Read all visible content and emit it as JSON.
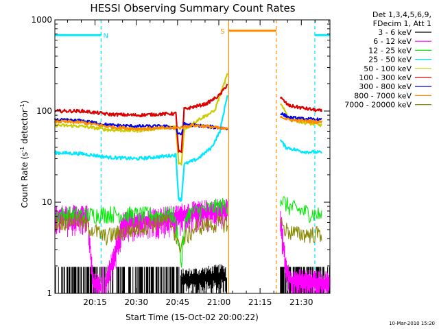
{
  "chart_data": {
    "type": "line",
    "title": "HESSI Observing Summary Count Rates",
    "xlabel": "Start Time (15-Oct-02 20:00:22)",
    "ylabel_main": "Count Rate (s",
    "ylabel_sup1": "-1",
    "ylabel_mid": " detector",
    "ylabel_sup2": "-1",
    "ylabel_end": ")",
    "x_unit": "minutes after 20:00:22",
    "xlim": [
      0,
      100
    ],
    "ylim": [
      1,
      1000
    ],
    "yscale": "log",
    "x_ticks": [
      {
        "value": 14.6,
        "label": "20:15"
      },
      {
        "value": 29.6,
        "label": "20:30"
      },
      {
        "value": 44.6,
        "label": "20:45"
      },
      {
        "value": 59.6,
        "label": "21:00"
      },
      {
        "value": 74.6,
        "label": "21:15"
      },
      {
        "value": 89.6,
        "label": "21:30"
      }
    ],
    "y_ticks": [
      {
        "value": 1,
        "label": "1"
      },
      {
        "value": 10,
        "label": "10"
      },
      {
        "value": 100,
        "label": "100"
      },
      {
        "value": 1000,
        "label": "1000"
      }
    ],
    "legend_header": [
      "Det 1,3,4,5,6,9,",
      "FDecim 1, Att 1"
    ],
    "legend_placement": "right",
    "timestamp": "10-Mar-2010 15:20",
    "flags": [
      {
        "label": "N",
        "color": "#00e8ff",
        "level": 680,
        "segments": [
          [
            0,
            16.8
          ],
          [
            94.5,
            100
          ]
        ],
        "text_x": 18.5
      },
      {
        "label": "S",
        "color": "#ff8c00",
        "level": 760,
        "segments": [
          [
            63.2,
            80.5
          ]
        ],
        "text_x": 61.0
      }
    ],
    "vlines": [
      {
        "x": 16.8,
        "color": "#00e8ff",
        "dashed": true
      },
      {
        "x": 94.5,
        "color": "#00e8ff",
        "dashed": true
      },
      {
        "x": 63.2,
        "color": "#ff8c00",
        "dashed": false
      },
      {
        "x": 80.5,
        "color": "#ff8c00",
        "dashed": true
      }
    ],
    "series": [
      {
        "name": "3 - 6 keV",
        "color": "#000000",
        "mode": "spiky",
        "segments": [
          [
            [
              0,
              1
            ],
            [
              45,
              1
            ],
            [
              46,
              1.5
            ],
            [
              55,
              1.6
            ],
            [
              62,
              1.7
            ],
            [
              62.9,
              1
            ]
          ],
          [
            [
              82,
              1
            ],
            [
              100,
              1
            ]
          ]
        ]
      },
      {
        "name": "6 - 12 keV",
        "color": "#ff00ff",
        "mode": "spiky",
        "segments": [
          [
            [
              0,
              7.5
            ],
            [
              12,
              7.5
            ],
            [
              13,
              3
            ],
            [
              14,
              1.4
            ],
            [
              18,
              1.2
            ],
            [
              25,
              6.5
            ],
            [
              35,
              7
            ],
            [
              44,
              7.4
            ],
            [
              47,
              8
            ],
            [
              55,
              8.5
            ],
            [
              62.9,
              9
            ]
          ],
          [
            [
              82,
              7.5
            ],
            [
              84,
              2
            ],
            [
              86,
              1.5
            ],
            [
              100,
              1.4
            ]
          ]
        ]
      },
      {
        "name": "12 - 25 keV",
        "color": "#00ee00",
        "mode": "noisy",
        "segments": [
          [
            [
              0,
              7.4
            ],
            [
              12,
              7.3
            ],
            [
              20,
              7.5
            ],
            [
              30,
              7.3
            ],
            [
              43,
              7.4
            ],
            [
              45,
              4
            ],
            [
              46,
              2
            ],
            [
              46.5,
              3.5
            ],
            [
              48,
              7.5
            ],
            [
              55,
              8.5
            ],
            [
              62.9,
              9.5
            ]
          ],
          [
            [
              82,
              11
            ],
            [
              85,
              9
            ],
            [
              90,
              8
            ],
            [
              97,
              7.2
            ]
          ]
        ]
      },
      {
        "name": "25 - 50 keV",
        "color": "#00e8ff",
        "mode": "smooth",
        "segments": [
          [
            [
              0,
              35
            ],
            [
              10,
              34
            ],
            [
              20,
              31
            ],
            [
              30,
              30
            ],
            [
              40,
              32
            ],
            [
              44,
              33
            ],
            [
              45,
              11
            ],
            [
              46,
              10.5
            ],
            [
              47,
              26
            ],
            [
              52,
              30
            ],
            [
              57,
              40
            ],
            [
              60,
              60
            ],
            [
              62.9,
              160
            ]
          ],
          [
            [
              82,
              48
            ],
            [
              84,
              40
            ],
            [
              90,
              36
            ],
            [
              97,
              35
            ]
          ]
        ]
      },
      {
        "name": "50 - 100 keV",
        "color": "#cccc00",
        "mode": "smooth",
        "segments": [
          [
            [
              0,
              70
            ],
            [
              10,
              68
            ],
            [
              20,
              62
            ],
            [
              30,
              61
            ],
            [
              40,
              66
            ],
            [
              44,
              67
            ],
            [
              45,
              27
            ],
            [
              46,
              26
            ],
            [
              47,
              62
            ],
            [
              52,
              80
            ],
            [
              58,
              100
            ],
            [
              62.9,
              260
            ]
          ],
          [
            [
              82,
              120
            ],
            [
              85,
              85
            ],
            [
              90,
              75
            ],
            [
              97,
              70
            ]
          ]
        ]
      },
      {
        "name": "100 - 300 keV",
        "color": "#dd0000",
        "mode": "smooth",
        "segments": [
          [
            [
              0,
              100
            ],
            [
              10,
              100
            ],
            [
              20,
              92
            ],
            [
              30,
              90
            ],
            [
              40,
              93
            ],
            [
              44,
              94
            ],
            [
              45,
              36
            ],
            [
              46,
              35
            ],
            [
              47,
              105
            ],
            [
              55,
              120
            ],
            [
              60,
              150
            ],
            [
              62.9,
              200
            ]
          ],
          [
            [
              82,
              140
            ],
            [
              85,
              115
            ],
            [
              90,
              108
            ],
            [
              97,
              100
            ]
          ]
        ]
      },
      {
        "name": "300 - 800 keV",
        "color": "#0000ee",
        "mode": "smooth",
        "segments": [
          [
            [
              0,
              80
            ],
            [
              10,
              78
            ],
            [
              20,
              70
            ],
            [
              30,
              68
            ],
            [
              40,
              68
            ],
            [
              44,
              65
            ],
            [
              45,
              55
            ],
            [
              46,
              56
            ],
            [
              47,
              72
            ],
            [
              55,
              68
            ],
            [
              62.9,
              64
            ]
          ],
          [
            [
              82,
              95
            ],
            [
              85,
              85
            ],
            [
              90,
              82
            ],
            [
              97,
              80
            ]
          ]
        ]
      },
      {
        "name": "800 - 7000 keV",
        "color": "#ff8c00",
        "mode": "smooth",
        "segments": [
          [
            [
              0,
              77
            ],
            [
              10,
              75
            ],
            [
              20,
              67
            ],
            [
              30,
              64
            ],
            [
              40,
              65
            ],
            [
              44,
              65
            ],
            [
              46,
              66
            ],
            [
              50,
              70
            ],
            [
              55,
              68
            ],
            [
              62.9,
              63
            ]
          ],
          [
            [
              82,
              88
            ],
            [
              85,
              80
            ],
            [
              90,
              78
            ],
            [
              97,
              76
            ]
          ]
        ]
      },
      {
        "name": "7000 - 20000 keV",
        "color": "#888800",
        "mode": "noisy",
        "segments": [
          [
            [
              0,
              6
            ],
            [
              8,
              6.5
            ],
            [
              12,
              5.5
            ],
            [
              18,
              4.2
            ],
            [
              30,
              5.2
            ],
            [
              40,
              6.5
            ],
            [
              43,
              5.5
            ],
            [
              45,
              3.2
            ],
            [
              47,
              4
            ],
            [
              52,
              5.5
            ],
            [
              58,
              5.8
            ],
            [
              62.9,
              6
            ]
          ],
          [
            [
              82,
              6
            ],
            [
              84,
              5
            ],
            [
              88,
              4.5
            ],
            [
              97,
              4.5
            ]
          ]
        ]
      }
    ]
  }
}
